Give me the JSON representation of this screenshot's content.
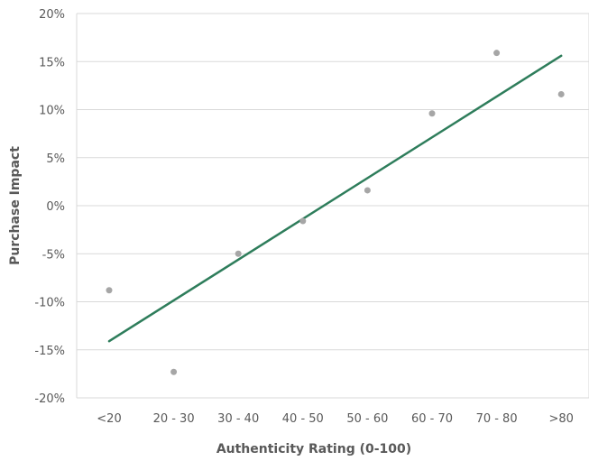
{
  "chart_data": {
    "type": "scatter",
    "xlabel": "Authenticity Rating (0-100)",
    "ylabel": "Purchase Impact",
    "categories": [
      "<20",
      "20 - 30",
      "30 - 40",
      "40 - 50",
      "50 - 60",
      "60 - 70",
      "70 - 80",
      ">80"
    ],
    "values": [
      -8.8,
      -17.3,
      -5.0,
      -1.6,
      1.6,
      9.6,
      15.9,
      11.6
    ],
    "ylim": [
      -20,
      20
    ],
    "yticks": [
      20,
      15,
      10,
      5,
      0,
      -5,
      -10,
      -15,
      -20
    ],
    "ytick_labels": [
      "20%",
      "15%",
      "10%",
      "5%",
      "0%",
      "-5%",
      "-10%",
      "-15%",
      "-20%"
    ],
    "trendline": {
      "start": -14.1,
      "end": 15.6
    },
    "grid": true,
    "colors": {
      "points": "#a6a6a6",
      "trendline": "#2e7d5b",
      "grid": "#d9d9d9"
    }
  }
}
